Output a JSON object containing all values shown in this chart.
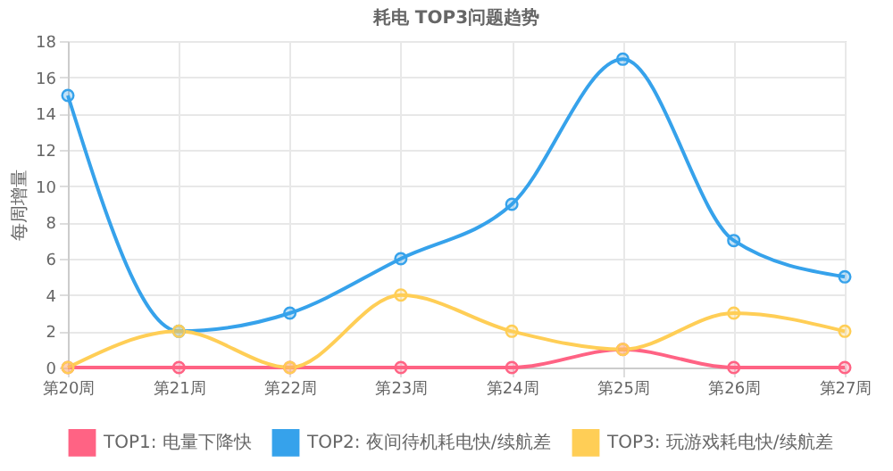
{
  "chart_data": {
    "type": "line",
    "title": "耗电 TOP3问题趋势",
    "ylabel": "每周增量",
    "categories": [
      "第20周",
      "第21周",
      "第22周",
      "第23周",
      "第24周",
      "第25周",
      "第26周",
      "第27周"
    ],
    "series": [
      {
        "name": "TOP1: 电量下降快",
        "color": "#ff6384",
        "values": [
          0,
          0,
          0,
          0,
          0,
          1,
          0,
          0
        ]
      },
      {
        "name": "TOP2: 夜间待机耗电快/续航差",
        "color": "#36a2eb",
        "values": [
          15,
          2,
          3,
          6,
          9,
          17,
          7,
          5
        ]
      },
      {
        "name": "TOP3: 玩游戏耗电快/续航差",
        "color": "#ffce56",
        "values": [
          0,
          2,
          0,
          4,
          2,
          1,
          3,
          2
        ]
      }
    ],
    "ylim": [
      0,
      18
    ],
    "yticks": [
      0,
      2,
      4,
      6,
      8,
      10,
      12,
      14,
      16,
      18
    ],
    "grid": true,
    "legend": "bottom",
    "marker": "circle",
    "line_style": "solid"
  }
}
